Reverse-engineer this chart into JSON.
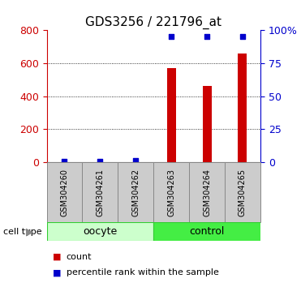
{
  "title": "GDS3256 / 221796_at",
  "samples": [
    "GSM304260",
    "GSM304261",
    "GSM304262",
    "GSM304263",
    "GSM304264",
    "GSM304265"
  ],
  "counts": [
    0,
    0,
    0,
    570,
    460,
    660
  ],
  "percentiles": [
    0.5,
    0.5,
    1.5,
    95,
    95,
    95
  ],
  "bar_color": "#cc0000",
  "dot_color": "#0000cc",
  "left_ylim": [
    0,
    800
  ],
  "right_ylim": [
    0,
    100
  ],
  "left_yticks": [
    0,
    200,
    400,
    600,
    800
  ],
  "right_yticks": [
    0,
    25,
    50,
    75,
    100
  ],
  "right_yticklabels": [
    "0",
    "25",
    "50",
    "75",
    "100%"
  ],
  "grid_values": [
    200,
    400,
    600
  ],
  "groups": [
    {
      "label": "oocyte",
      "indices": [
        0,
        1,
        2
      ],
      "color": "#ccffcc",
      "edge_color": "#33cc33"
    },
    {
      "label": "control",
      "indices": [
        3,
        4,
        5
      ],
      "color": "#44ee44",
      "edge_color": "#33cc33"
    }
  ],
  "legend_items": [
    {
      "label": "count",
      "color": "#cc0000"
    },
    {
      "label": "percentile rank within the sample",
      "color": "#0000cc"
    }
  ],
  "cell_type_label": "cell type",
  "background_color": "#ffffff",
  "tick_label_color_left": "#cc0000",
  "tick_label_color_right": "#0000cc",
  "bar_width": 0.25,
  "gray_box_color": "#cccccc",
  "gray_box_edge": "#888888"
}
